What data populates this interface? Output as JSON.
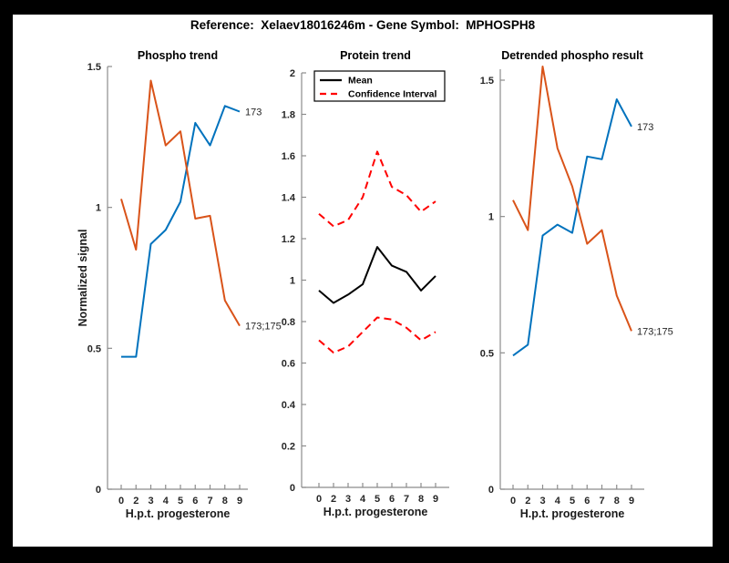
{
  "figure": {
    "title": "Reference:  Xelaev18016246m - Gene Symbol:  MPHOSPH8",
    "frame_color": "#000000",
    "canvas_color": "#ffffff"
  },
  "colors": {
    "blue": "#0072BD",
    "orange": "#D95319",
    "red": "#FF0000",
    "black": "#000000",
    "axis": "#8c8c8c",
    "tick_label": "#262626"
  },
  "chart_data": [
    {
      "type": "line",
      "title": "Phospho trend",
      "xlabel": "H.p.t. progesterone",
      "ylabel": "Normalized signal",
      "x_ticklabels": [
        "0",
        "2",
        "3",
        "4",
        "5",
        "6",
        "7",
        "8",
        "9"
      ],
      "x_spacing": "equal",
      "ylim": [
        0,
        1.5
      ],
      "yticks": [
        0,
        0.5,
        1,
        1.5
      ],
      "ytick_labels": [
        "0",
        "0.5",
        "1",
        "1.5"
      ],
      "grid": false,
      "series": [
        {
          "name": "173",
          "color_key": "blue",
          "style": "solid",
          "values": [
            0.47,
            0.47,
            0.87,
            0.92,
            1.02,
            1.3,
            1.22,
            1.36,
            1.34
          ],
          "end_label": "173"
        },
        {
          "name": "173;175",
          "color_key": "orange",
          "style": "solid",
          "values": [
            1.03,
            0.85,
            1.45,
            1.22,
            1.27,
            0.96,
            0.97,
            0.67,
            0.58
          ],
          "end_label": "173;175"
        }
      ]
    },
    {
      "type": "line",
      "title": "Protein trend",
      "xlabel": "H.p.t. progesterone",
      "ylabel": "",
      "x_ticklabels": [
        "0",
        "2",
        "3",
        "4",
        "5",
        "6",
        "7",
        "8",
        "9"
      ],
      "x_spacing": "equal",
      "ylim": [
        0,
        2
      ],
      "yticks": [
        0,
        0.2,
        0.4,
        0.6,
        0.8,
        1,
        1.2,
        1.4,
        1.6,
        1.8,
        2
      ],
      "ytick_labels": [
        "0",
        "0.2",
        "0.4",
        "0.6",
        "0.8",
        "1",
        "1.2",
        "1.4",
        "1.6",
        "1.8",
        "2"
      ],
      "grid": false,
      "legend": {
        "position": "top-left",
        "entries": [
          {
            "label": "Mean",
            "color_key": "black",
            "style": "solid"
          },
          {
            "label": "Confidence Interval",
            "color_key": "red",
            "style": "dashed"
          }
        ]
      },
      "series": [
        {
          "name": "Mean",
          "color_key": "black",
          "style": "solid",
          "values": [
            0.95,
            0.89,
            0.93,
            0.98,
            1.16,
            1.07,
            1.04,
            0.95,
            1.02
          ]
        },
        {
          "name": "Confidence Interval upper",
          "color_key": "red",
          "style": "dashed",
          "values": [
            1.32,
            1.26,
            1.29,
            1.4,
            1.62,
            1.45,
            1.41,
            1.33,
            1.38
          ]
        },
        {
          "name": "Confidence Interval lower",
          "color_key": "red",
          "style": "dashed",
          "values": [
            0.71,
            0.65,
            0.68,
            0.75,
            0.82,
            0.81,
            0.77,
            0.71,
            0.75
          ]
        }
      ]
    },
    {
      "type": "line",
      "title": "Detrended phospho result",
      "xlabel": "H.p.t. progesterone",
      "ylabel": "",
      "x_ticklabels": [
        "0",
        "2",
        "3",
        "4",
        "5",
        "6",
        "7",
        "8",
        "9"
      ],
      "x_spacing": "equal",
      "ylim": [
        0,
        1.57
      ],
      "yticks": [
        0,
        0.5,
        1,
        1.5
      ],
      "ytick_labels": [
        "0",
        "0.5",
        "1",
        "1.5"
      ],
      "grid": false,
      "series": [
        {
          "name": "173",
          "color_key": "blue",
          "style": "solid",
          "values": [
            0.49,
            0.53,
            0.93,
            0.97,
            0.94,
            1.22,
            1.21,
            1.43,
            1.33
          ],
          "end_label": "173"
        },
        {
          "name": "173;175",
          "color_key": "orange",
          "style": "solid",
          "values": [
            1.06,
            0.95,
            1.55,
            1.25,
            1.11,
            0.9,
            0.95,
            0.71,
            0.58
          ],
          "end_label": "173;175"
        }
      ]
    }
  ]
}
